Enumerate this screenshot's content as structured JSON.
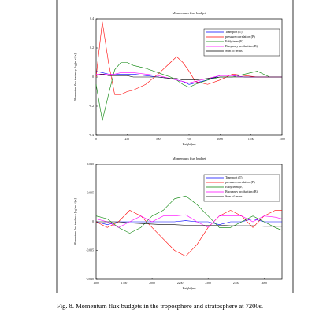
{
  "chart_data": [
    {
      "type": "line",
      "title": "Momentum flux budget",
      "x_label": "Height (m)",
      "y_label": "Momentum flux tendency [kg/(m s²)/s]",
      "x": [
        0,
        50,
        100,
        150,
        200,
        250,
        300,
        400,
        500,
        600,
        650,
        700,
        750,
        800,
        900,
        1000,
        1100,
        1200,
        1300,
        1400,
        1500
      ],
      "series": [
        {
          "name": "Transport (T)",
          "color": "#0000ff",
          "values": [
            0.04,
            0.03,
            0.02,
            0.02,
            0.02,
            0.02,
            0.02,
            0.01,
            0,
            -0.01,
            -0.02,
            -0.03,
            -0.05,
            -0.04,
            -0.02,
            0.01,
            0.01,
            0,
            0,
            0,
            0
          ]
        },
        {
          "name": "pressure correlation (P)",
          "color": "#ff0000",
          "values": [
            0,
            0.38,
            0.1,
            -0.12,
            -0.12,
            -0.1,
            -0.09,
            -0.05,
            0.02,
            0.1,
            0.14,
            0.1,
            0.04,
            -0.03,
            -0.05,
            -0.02,
            0.02,
            0.01,
            0,
            0,
            0
          ]
        },
        {
          "name": "Eddy term (E)",
          "color": "#008000",
          "values": [
            -0.05,
            -0.3,
            -0.12,
            0.05,
            0.1,
            0.1,
            0.08,
            0.06,
            0.03,
            0,
            -0.02,
            -0.05,
            -0.07,
            -0.05,
            -0.02,
            0,
            0,
            0.02,
            0.04,
            0,
            0
          ]
        },
        {
          "name": "Buoyancy production (B)",
          "color": "#ff00ff",
          "values": [
            0.02,
            0.02,
            0.02,
            0.02,
            0.03,
            0.03,
            0.03,
            0.02,
            0.01,
            -0.01,
            -0.02,
            -0.03,
            -0.04,
            -0.03,
            -0.01,
            0.01,
            0.01,
            0,
            0,
            0,
            0
          ]
        },
        {
          "name": "Sum of terms",
          "color": "#000000",
          "values": [
            0.01,
            0.02,
            0.01,
            0.01,
            0.01,
            0.01,
            0,
            0,
            0,
            -0.01,
            -0.01,
            -0.02,
            -0.02,
            -0.02,
            -0.01,
            0,
            0,
            0,
            0,
            0,
            0
          ]
        }
      ],
      "xlim": [
        0,
        1500
      ],
      "xticks": [
        0,
        250,
        500,
        750,
        1000,
        1250,
        1500
      ],
      "ylim": [
        -0.4,
        0.4
      ],
      "yticks": [
        -0.4,
        -0.2,
        0,
        0.2,
        0.4
      ],
      "legend": "upper right"
    },
    {
      "type": "line",
      "title": "Momentum flux budget",
      "x_label": "Height (m)",
      "y_label": "Momentum flux tendency [kg/(m s²)/s]",
      "x": [
        1500,
        1600,
        1700,
        1800,
        1900,
        2000,
        2100,
        2200,
        2300,
        2400,
        2500,
        2600,
        2700,
        2800,
        2900,
        3000,
        3100,
        3160
      ],
      "series": [
        {
          "name": "Transport (T)",
          "color": "#0000ff",
          "values": [
            0,
            -0.0005,
            0,
            0,
            0,
            0,
            0,
            0,
            0.0002,
            0,
            0,
            -0.0005,
            0,
            0,
            0.0005,
            0,
            0,
            0
          ]
        },
        {
          "name": "pressure correlation (P)",
          "color": "#ff0000",
          "values": [
            0,
            -0.001,
            0,
            0.002,
            0.001,
            -0.001,
            -0.003,
            -0.005,
            -0.006,
            -0.004,
            -0.001,
            0.001,
            0.002,
            0.001,
            -0.001,
            0.001,
            0.002,
            0.002
          ]
        },
        {
          "name": "Eddy term (E)",
          "color": "#008000",
          "values": [
            0.001,
            0.0005,
            -0.001,
            -0.002,
            -0.001,
            0.001,
            0.002,
            0.004,
            0.0045,
            0.003,
            0.001,
            -0.001,
            -0.001,
            0,
            0.001,
            0,
            -0.001,
            -0.0015
          ]
        },
        {
          "name": "Buoyancy production (B)",
          "color": "#ff00ff",
          "values": [
            0.0005,
            0,
            -0.001,
            0,
            0.001,
            0,
            0.001,
            0.001,
            0.0012,
            0,
            -0.001,
            0.001,
            0.001,
            0.001,
            0,
            0.001,
            0.0008,
            0.0005
          ]
        },
        {
          "name": "Sum of terms",
          "color": "#000000",
          "values": [
            0,
            0,
            0,
            -0.0002,
            -0.0003,
            -0.0004,
            -0.0005,
            -0.0005,
            -0.0006,
            -0.0006,
            -0.0006,
            -0.0006,
            -0.0007,
            -0.0007,
            -0.0007,
            -0.0008,
            -0.0008,
            -0.0008
          ]
        }
      ],
      "xlim": [
        1500,
        3160
      ],
      "xticks": [
        1500,
        1750,
        2000,
        2250,
        2500,
        2750,
        3000
      ],
      "ylim": [
        -0.01,
        0.01
      ],
      "yticks": [
        {
          "value": -0.01,
          "label": "-0.010"
        },
        {
          "value": -0.005,
          "label": "-0.005"
        },
        0,
        {
          "value": 0.005,
          "label": "0.005"
        },
        {
          "value": 0.01,
          "label": "0.010"
        }
      ],
      "legend": "upper right"
    }
  ],
  "caption": "Fig. 8. Momentum flux budgets in the troposphere and stratosphere at 7200s."
}
